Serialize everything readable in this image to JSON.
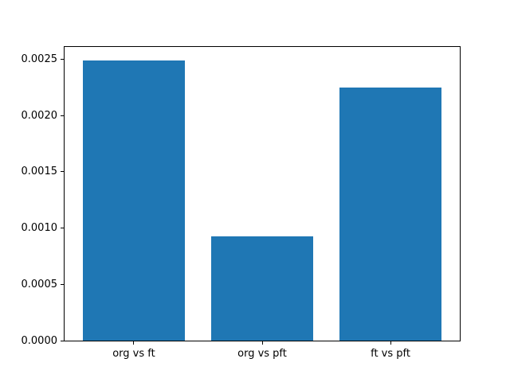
{
  "figure": {
    "background_color": "#ffffff",
    "spine_color": "#000000",
    "text_color": "#000000"
  },
  "chart_data": {
    "type": "bar",
    "categories": [
      "org vs ft",
      "org vs pft",
      "ft vs pft"
    ],
    "values": [
      0.00249,
      0.00093,
      0.00225
    ],
    "title": "",
    "xlabel": "",
    "ylabel": "",
    "ylim": [
      0,
      0.00261
    ],
    "xlim": [
      -0.54,
      2.54
    ],
    "bar_width": 0.8,
    "bar_color": "#1f77b4",
    "yticks": [
      0.0,
      0.0005,
      0.001,
      0.0015,
      0.002,
      0.0025
    ],
    "ytick_labels": [
      "0.0000",
      "0.0005",
      "0.0010",
      "0.0015",
      "0.0020",
      "0.0025"
    ],
    "grid": false,
    "legend": null
  }
}
